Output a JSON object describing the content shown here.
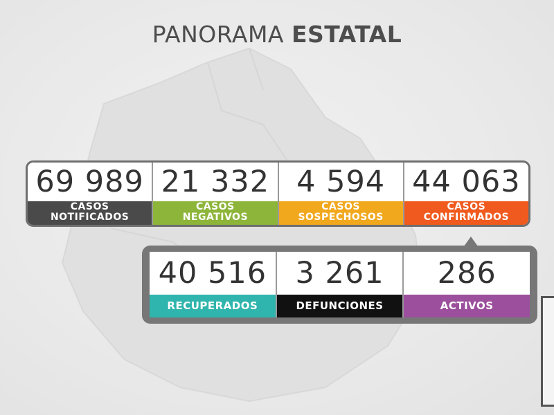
{
  "header": {
    "title_light": "PANORAMA ",
    "title_bold": "ESTATAL"
  },
  "stats_row1": [
    {
      "value": "69 989",
      "label": "CASOS\nNOTIFICADOS",
      "color": "#4a4a4a"
    },
    {
      "value": "21 332",
      "label": "CASOS\nNEGATIVOS",
      "color": "#8db53a"
    },
    {
      "value": "4 594",
      "label": "CASOS\nSOSPECHOSOS",
      "color": "#f2a81d"
    },
    {
      "value": "44 063",
      "label": "CASOS\nCONFIRMADOS",
      "color": "#f05a1e"
    }
  ],
  "stats_row2": [
    {
      "value": "40 516",
      "label": "RECUPERADOS",
      "color": "#2fb5ad"
    },
    {
      "value": "3 261",
      "label": "DEFUNCIONES",
      "color": "#111111"
    },
    {
      "value": "286",
      "label": "ACTIVOS",
      "color": "#9b4f9c"
    }
  ],
  "colors": {
    "frame": "#777777",
    "title": "#4d4d4d",
    "number": "#333333"
  }
}
